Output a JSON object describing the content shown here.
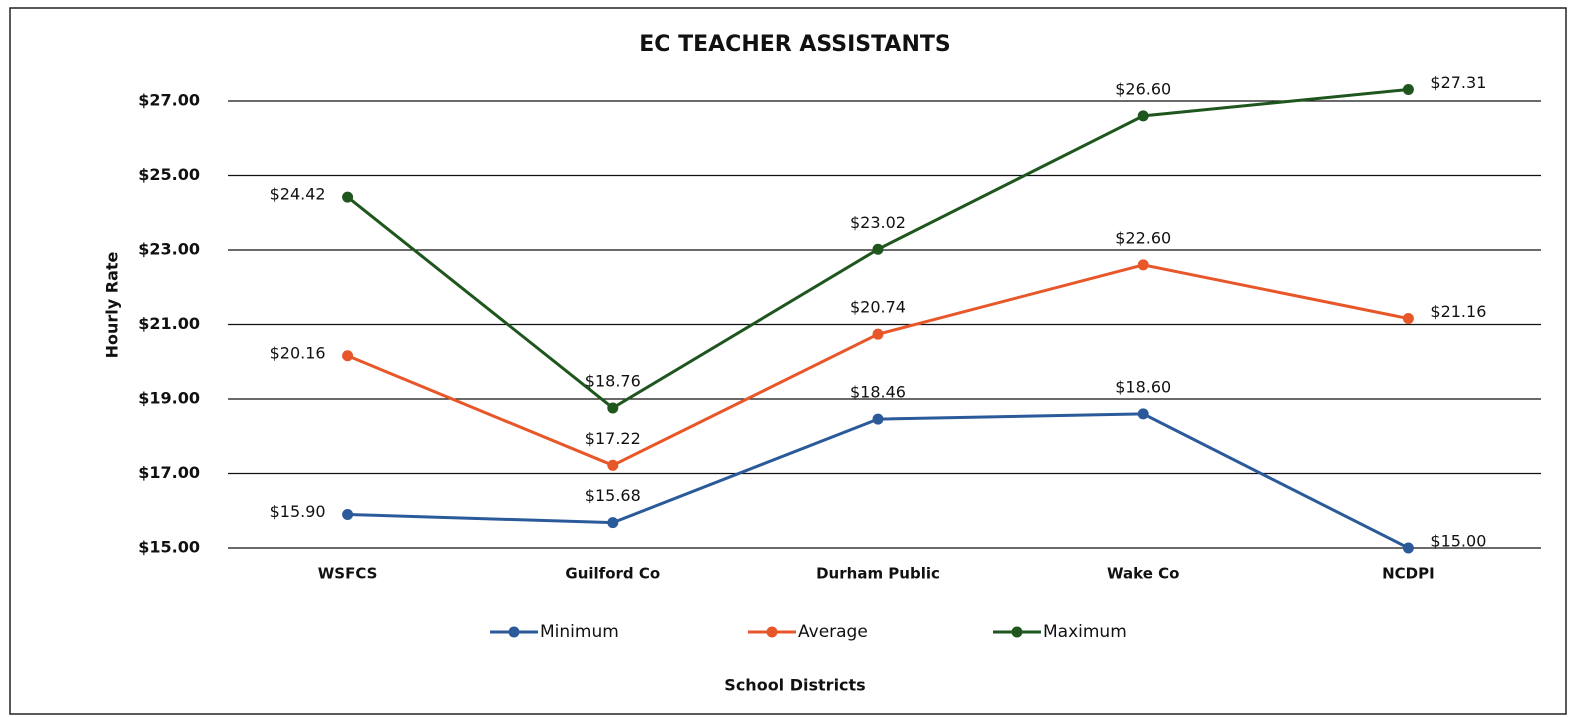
{
  "chart_data": {
    "type": "line",
    "title": "EC TEACHER ASSISTANTS",
    "y_label": "Hourly Rate",
    "x_label": "School Districts",
    "categories": [
      "WSFCS",
      "Guilford Co",
      "Durham Public",
      "Wake Co",
      "NCDPI"
    ],
    "series": [
      {
        "name": "Minimum",
        "color": "#2b5a9a",
        "values": [
          15.9,
          15.68,
          18.46,
          18.6,
          15.0
        ],
        "value_labels": [
          "$15.90",
          "$15.68",
          "$18.46",
          "$18.60",
          "$15.00"
        ]
      },
      {
        "name": "Average",
        "color": "#e8572a",
        "values": [
          20.16,
          17.22,
          20.74,
          22.6,
          21.16
        ],
        "value_labels": [
          "$20.16",
          "$17.22",
          "$20.74",
          "$22.60",
          "$21.16"
        ]
      },
      {
        "name": "Maximum",
        "color": "#1e561e",
        "values": [
          24.42,
          18.76,
          23.02,
          26.6,
          27.31
        ],
        "value_labels": [
          "$24.42",
          "$18.76",
          "$23.02",
          "$26.60",
          "$27.31"
        ]
      }
    ],
    "ylim": [
      15,
      28
    ],
    "yticks": [
      {
        "value": 15,
        "label": "$15.00"
      },
      {
        "value": 17,
        "label": "$17.00"
      },
      {
        "value": 19,
        "label": "$19.00"
      },
      {
        "value": 21,
        "label": "$21.00"
      },
      {
        "value": 23,
        "label": "$23.00"
      },
      {
        "value": 25,
        "label": "$25.00"
      },
      {
        "value": 27,
        "label": "$27.00"
      }
    ],
    "grid": true,
    "legend": "bottom"
  }
}
